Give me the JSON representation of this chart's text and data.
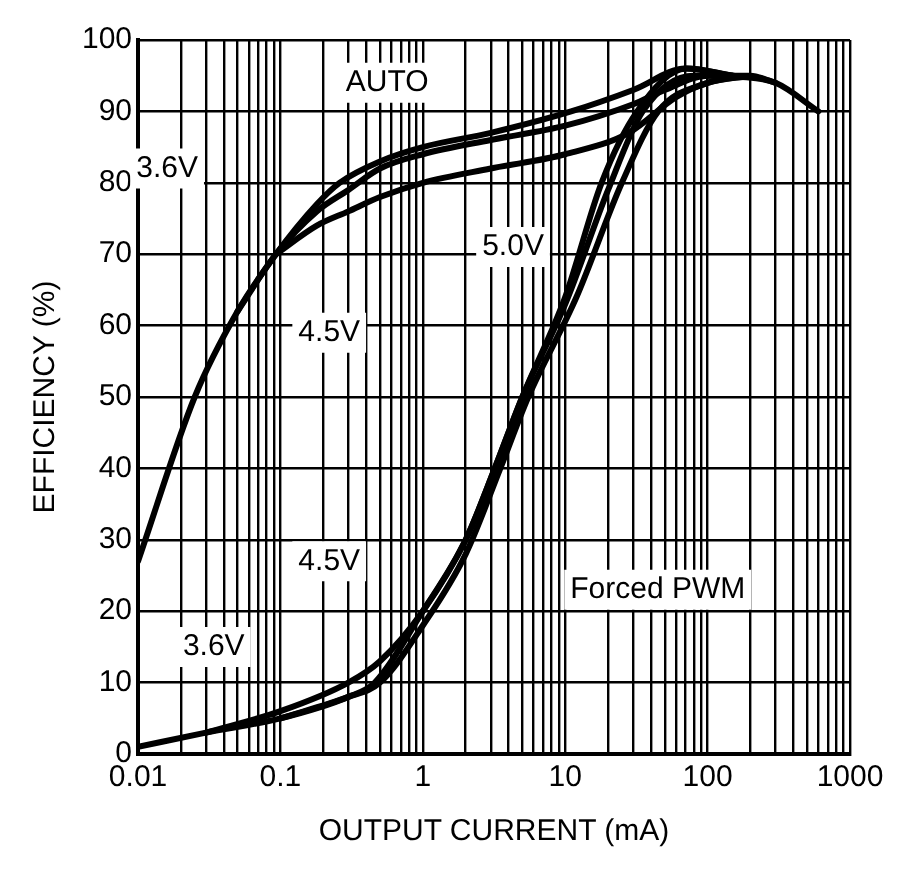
{
  "chart_data": {
    "type": "line",
    "xlabel": "OUTPUT CURRENT (mA)",
    "ylabel": "EFFICIENCY (%)",
    "log": "x",
    "grid": true,
    "marker": "none",
    "line_style": "solid",
    "xlim": [
      0.01,
      1000
    ],
    "ylim": [
      0,
      100
    ],
    "xticks": [
      0.01,
      {
        "value": 0.02,
        "label": null
      },
      {
        "value": 0.03,
        "label": null
      },
      {
        "value": 0.04,
        "label": null
      },
      {
        "value": 0.05,
        "label": null
      },
      {
        "value": 0.06,
        "label": null
      },
      {
        "value": 0.07,
        "label": null
      },
      {
        "value": 0.08,
        "label": null
      },
      {
        "value": 0.09,
        "label": null
      },
      0.1,
      {
        "value": 0.2,
        "label": null
      },
      {
        "value": 0.3,
        "label": null
      },
      {
        "value": 0.4,
        "label": null
      },
      {
        "value": 0.5,
        "label": null
      },
      {
        "value": 0.6,
        "label": null
      },
      {
        "value": 0.7,
        "label": null
      },
      {
        "value": 0.8,
        "label": null
      },
      {
        "value": 0.9,
        "label": null
      },
      1,
      {
        "value": 2,
        "label": null
      },
      {
        "value": 3,
        "label": null
      },
      {
        "value": 4,
        "label": null
      },
      {
        "value": 5,
        "label": null
      },
      {
        "value": 6,
        "label": null
      },
      {
        "value": 7,
        "label": null
      },
      {
        "value": 8,
        "label": null
      },
      {
        "value": 9,
        "label": null
      },
      10,
      {
        "value": 20,
        "label": null
      },
      {
        "value": 30,
        "label": null
      },
      {
        "value": 40,
        "label": null
      },
      {
        "value": 50,
        "label": null
      },
      {
        "value": 60,
        "label": null
      },
      {
        "value": 70,
        "label": null
      },
      {
        "value": 80,
        "label": null
      },
      {
        "value": 90,
        "label": null
      },
      100,
      {
        "value": 200,
        "label": null
      },
      {
        "value": 300,
        "label": null
      },
      {
        "value": 400,
        "label": null
      },
      {
        "value": 500,
        "label": null
      },
      {
        "value": 600,
        "label": null
      },
      {
        "value": 700,
        "label": null
      },
      {
        "value": 800,
        "label": null
      },
      {
        "value": 900,
        "label": null
      },
      1000
    ],
    "yticks": [
      0,
      10,
      20,
      30,
      40,
      50,
      60,
      70,
      80,
      90,
      100
    ],
    "legend": false,
    "series": [
      {
        "color": "#000000",
        "x": [
          0.01,
          0.025,
          0.05,
          0.093,
          0.18,
          0.26,
          0.5,
          1,
          3,
          11,
          30,
          70,
          150,
          300,
          600
        ],
        "values": [
          27,
          50,
          62,
          70,
          77,
          80,
          83,
          85,
          87,
          90,
          93,
          96,
          95,
          94,
          90
        ]
      },
      {
        "color": "#000000",
        "x": [
          0.05,
          0.093,
          0.18,
          0.3,
          0.5,
          1,
          3,
          10,
          30,
          50,
          100,
          200,
          300
        ],
        "values": [
          62,
          70,
          76,
          79,
          82,
          84,
          86,
          88,
          91,
          93,
          95,
          95,
          94
        ]
      },
      {
        "color": "#000000",
        "x": [
          0.093,
          0.18,
          0.3,
          0.5,
          1,
          3,
          10,
          28,
          60,
          100,
          200
        ],
        "values": [
          70,
          74,
          76,
          78,
          80,
          82,
          84,
          87,
          92,
          94,
          95
        ]
      },
      {
        "color": "#000000",
        "x": [
          0.01,
          0.03,
          0.1,
          0.3,
          0.46,
          1,
          2,
          3.2,
          5,
          10,
          18,
          32,
          71,
          150
        ],
        "values": [
          1,
          3,
          5,
          8,
          10,
          20,
          30,
          40,
          50,
          64,
          80,
          90,
          96,
          95
        ]
      },
      {
        "color": "#000000",
        "x": [
          0.03,
          0.1,
          0.3,
          0.5,
          1,
          2,
          3.2,
          5,
          10,
          20,
          35,
          80,
          150
        ],
        "values": [
          3,
          6,
          10,
          13,
          20,
          30,
          40,
          50,
          63,
          79,
          90,
          95,
          95
        ]
      },
      {
        "color": "#000000",
        "x": [
          0.1,
          0.3,
          0.5,
          1,
          2,
          3.5,
          5.5,
          12,
          25,
          45,
          100,
          200
        ],
        "values": [
          5,
          8,
          10,
          18,
          28,
          40,
          50,
          64,
          80,
          90,
          94,
          95
        ]
      }
    ],
    "annotations": [
      "AUTO",
      {
        "text": "3.6V",
        "x": 0.016,
        "y": 82
      },
      {
        "text": "4.5V",
        "x": 0.22,
        "y": 59
      },
      {
        "text": "5.0V",
        "x": 4.3,
        "y": 71
      },
      {
        "text": "4.5V",
        "x": 0.22,
        "y": 27
      },
      {
        "text": "3.6V",
        "x": 0.034,
        "y": 15
      },
      "Forced PWM"
    ]
  }
}
